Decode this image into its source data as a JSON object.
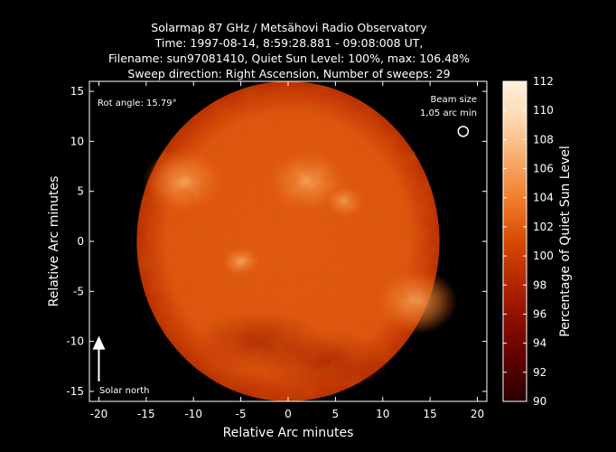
{
  "chart_data": {
    "type": "heatmap",
    "title_lines": [
      "Solarmap 87 GHz / Metsähovi Radio Observatory",
      "Time: 1997-08-14,  8:59:28.881 - 09:08:008 UT,",
      "Filename: sun97081410, Quiet Sun Level: 100%, max: 106.48%",
      "Sweep direction: Right Ascension, Number of sweeps: 29"
    ],
    "xlabel": "Relative Arc minutes",
    "ylabel": "Relative Arc minutes",
    "xlim": [
      -21,
      21
    ],
    "ylim": [
      -16,
      16
    ],
    "xticks": [
      -20,
      -15,
      -10,
      -5,
      0,
      5,
      10,
      15,
      20
    ],
    "yticks": [
      -15,
      -10,
      -5,
      0,
      5,
      10,
      15
    ],
    "colorbar": {
      "label": "Percentage of Quiet Sun Level",
      "range": [
        90,
        112
      ],
      "ticks": [
        90,
        92,
        94,
        96,
        98,
        100,
        102,
        104,
        106,
        108,
        110,
        112
      ],
      "colors": [
        "#2a0000",
        "#5c0000",
        "#8a0e00",
        "#b52700",
        "#d84a00",
        "#f07a2a",
        "#f9a868",
        "#fdd6ad",
        "#fff0dc"
      ]
    },
    "sun_disk": {
      "center": [
        0,
        0
      ],
      "radius": 16,
      "base_level": 100
    },
    "bright_regions": [
      {
        "x": -11,
        "y": 6,
        "level": 104
      },
      {
        "x": 2,
        "y": 6,
        "level": 104
      },
      {
        "x": 13.5,
        "y": -6,
        "level": 104
      },
      {
        "x": 6,
        "y": 4,
        "level": 102
      },
      {
        "x": -5,
        "y": -2,
        "level": 102
      }
    ],
    "dark_regions": [
      {
        "x": 4,
        "y": -12,
        "level": 98
      },
      {
        "x": -3,
        "y": -10,
        "level": 98
      }
    ],
    "annotations": {
      "rot_angle": "Rot angle: 15.79°",
      "beam_size_line1": "Beam size",
      "beam_size_line2": "1,05 arc min",
      "solar_north": "Solar north"
    },
    "beam_marker": {
      "x": 18.5,
      "y": 11,
      "diameter": 1.05
    },
    "north_arrow": {
      "x": -20,
      "y_from": -14,
      "y_to": -10
    }
  }
}
